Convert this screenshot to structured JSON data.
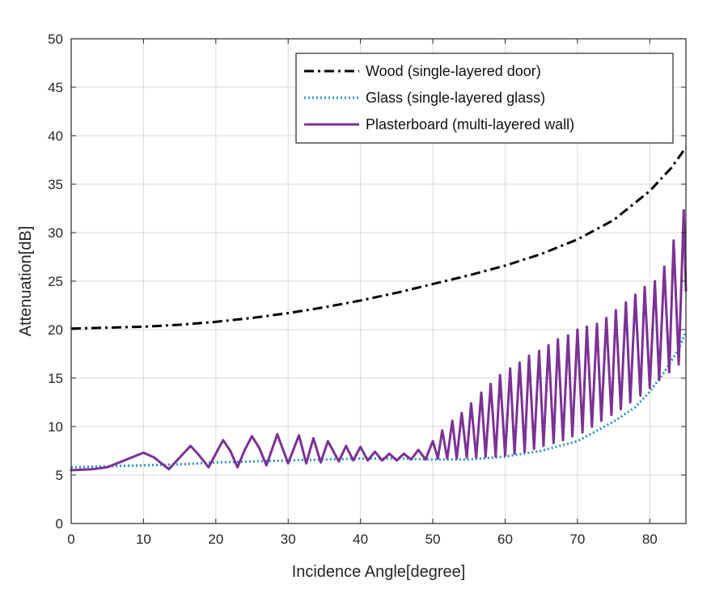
{
  "chart_data": {
    "type": "line",
    "title": "",
    "xlabel": "Incidence Angle[degree]",
    "ylabel": "Attenuation[dB]",
    "xlim": [
      0,
      85
    ],
    "ylim": [
      0,
      50
    ],
    "xticks": [
      0,
      10,
      20,
      30,
      40,
      50,
      60,
      70,
      80
    ],
    "yticks": [
      0,
      5,
      10,
      15,
      20,
      25,
      30,
      35,
      40,
      45,
      50
    ],
    "grid": true,
    "legend_position": "top-right",
    "series": [
      {
        "name": "Wood (single-layered door)",
        "color": "#000000",
        "style": "dash-dot",
        "x": [
          0,
          5,
          10,
          15,
          20,
          25,
          30,
          35,
          40,
          45,
          50,
          55,
          60,
          65,
          70,
          75,
          80,
          83,
          85
        ],
        "y": [
          20.1,
          20.2,
          20.3,
          20.5,
          20.8,
          21.2,
          21.7,
          22.3,
          23.0,
          23.8,
          24.7,
          25.6,
          26.6,
          27.8,
          29.3,
          31.3,
          34.3,
          36.7,
          38.8
        ]
      },
      {
        "name": "Glass (single-layered glass)",
        "color": "#2a8fd0",
        "style": "dotted",
        "x": [
          0,
          5,
          10,
          15,
          20,
          25,
          30,
          35,
          40,
          45,
          50,
          55,
          60,
          65,
          70,
          75,
          78,
          80,
          82,
          84,
          85
        ],
        "y": [
          5.8,
          5.9,
          6.0,
          6.1,
          6.3,
          6.4,
          6.5,
          6.6,
          6.7,
          6.7,
          6.6,
          6.6,
          6.9,
          7.5,
          8.5,
          10.5,
          12.0,
          13.6,
          15.6,
          18.0,
          19.8
        ]
      },
      {
        "name": "Plasterboard (multi-layered wall)",
        "color": "#7b3294",
        "style": "solid",
        "x": [
          0,
          3,
          5,
          7,
          10,
          11.5,
          13.5,
          15,
          16.5,
          17.5,
          19,
          20,
          21,
          22,
          23,
          24,
          25,
          26,
          27,
          28.5,
          30,
          31.5,
          32.5,
          33.5,
          34.5,
          35.5,
          37,
          38,
          39,
          40,
          41,
          42,
          43,
          44,
          45,
          46,
          47,
          48,
          49,
          50,
          50.7,
          51.3,
          52,
          52.7,
          53.3,
          54,
          54.7,
          55.3,
          56,
          56.7,
          57.3,
          58,
          58.7,
          59.3,
          60,
          60.7,
          61.3,
          62,
          62.7,
          63.3,
          64,
          64.7,
          65.3,
          66,
          66.7,
          67.3,
          68,
          68.7,
          69.3,
          70,
          70.7,
          71.3,
          72,
          72.7,
          73.3,
          74,
          74.7,
          75.3,
          76,
          76.7,
          77.3,
          78,
          78.7,
          79.3,
          80,
          80.7,
          81.3,
          82,
          82.7,
          83.3,
          84,
          84.7,
          85
        ],
        "y": [
          5.5,
          5.6,
          5.8,
          6.4,
          7.3,
          6.8,
          5.6,
          6.8,
          8.0,
          7.2,
          5.8,
          7.2,
          8.6,
          7.5,
          5.8,
          7.6,
          9.0,
          7.8,
          6.0,
          9.2,
          6.2,
          9.1,
          6.2,
          8.8,
          6.3,
          8.5,
          6.4,
          8.0,
          6.5,
          7.9,
          6.5,
          7.4,
          6.5,
          7.2,
          6.5,
          7.2,
          6.6,
          7.6,
          6.6,
          8.5,
          6.7,
          9.6,
          6.7,
          10.6,
          6.7,
          11.4,
          6.8,
          12.4,
          6.8,
          13.5,
          6.9,
          14.4,
          6.9,
          15.3,
          7.0,
          16.0,
          7.2,
          16.6,
          7.4,
          17.3,
          7.7,
          17.8,
          8.0,
          18.4,
          8.3,
          19.0,
          8.6,
          19.4,
          9.0,
          20.0,
          9.4,
          20.3,
          10.0,
          20.6,
          10.6,
          21.2,
          11.2,
          22.0,
          11.8,
          22.8,
          12.5,
          23.6,
          13.2,
          24.4,
          14.0,
          25.0,
          14.8,
          26.5,
          15.6,
          29.2,
          16.4,
          32.3,
          24.0
        ]
      }
    ]
  }
}
